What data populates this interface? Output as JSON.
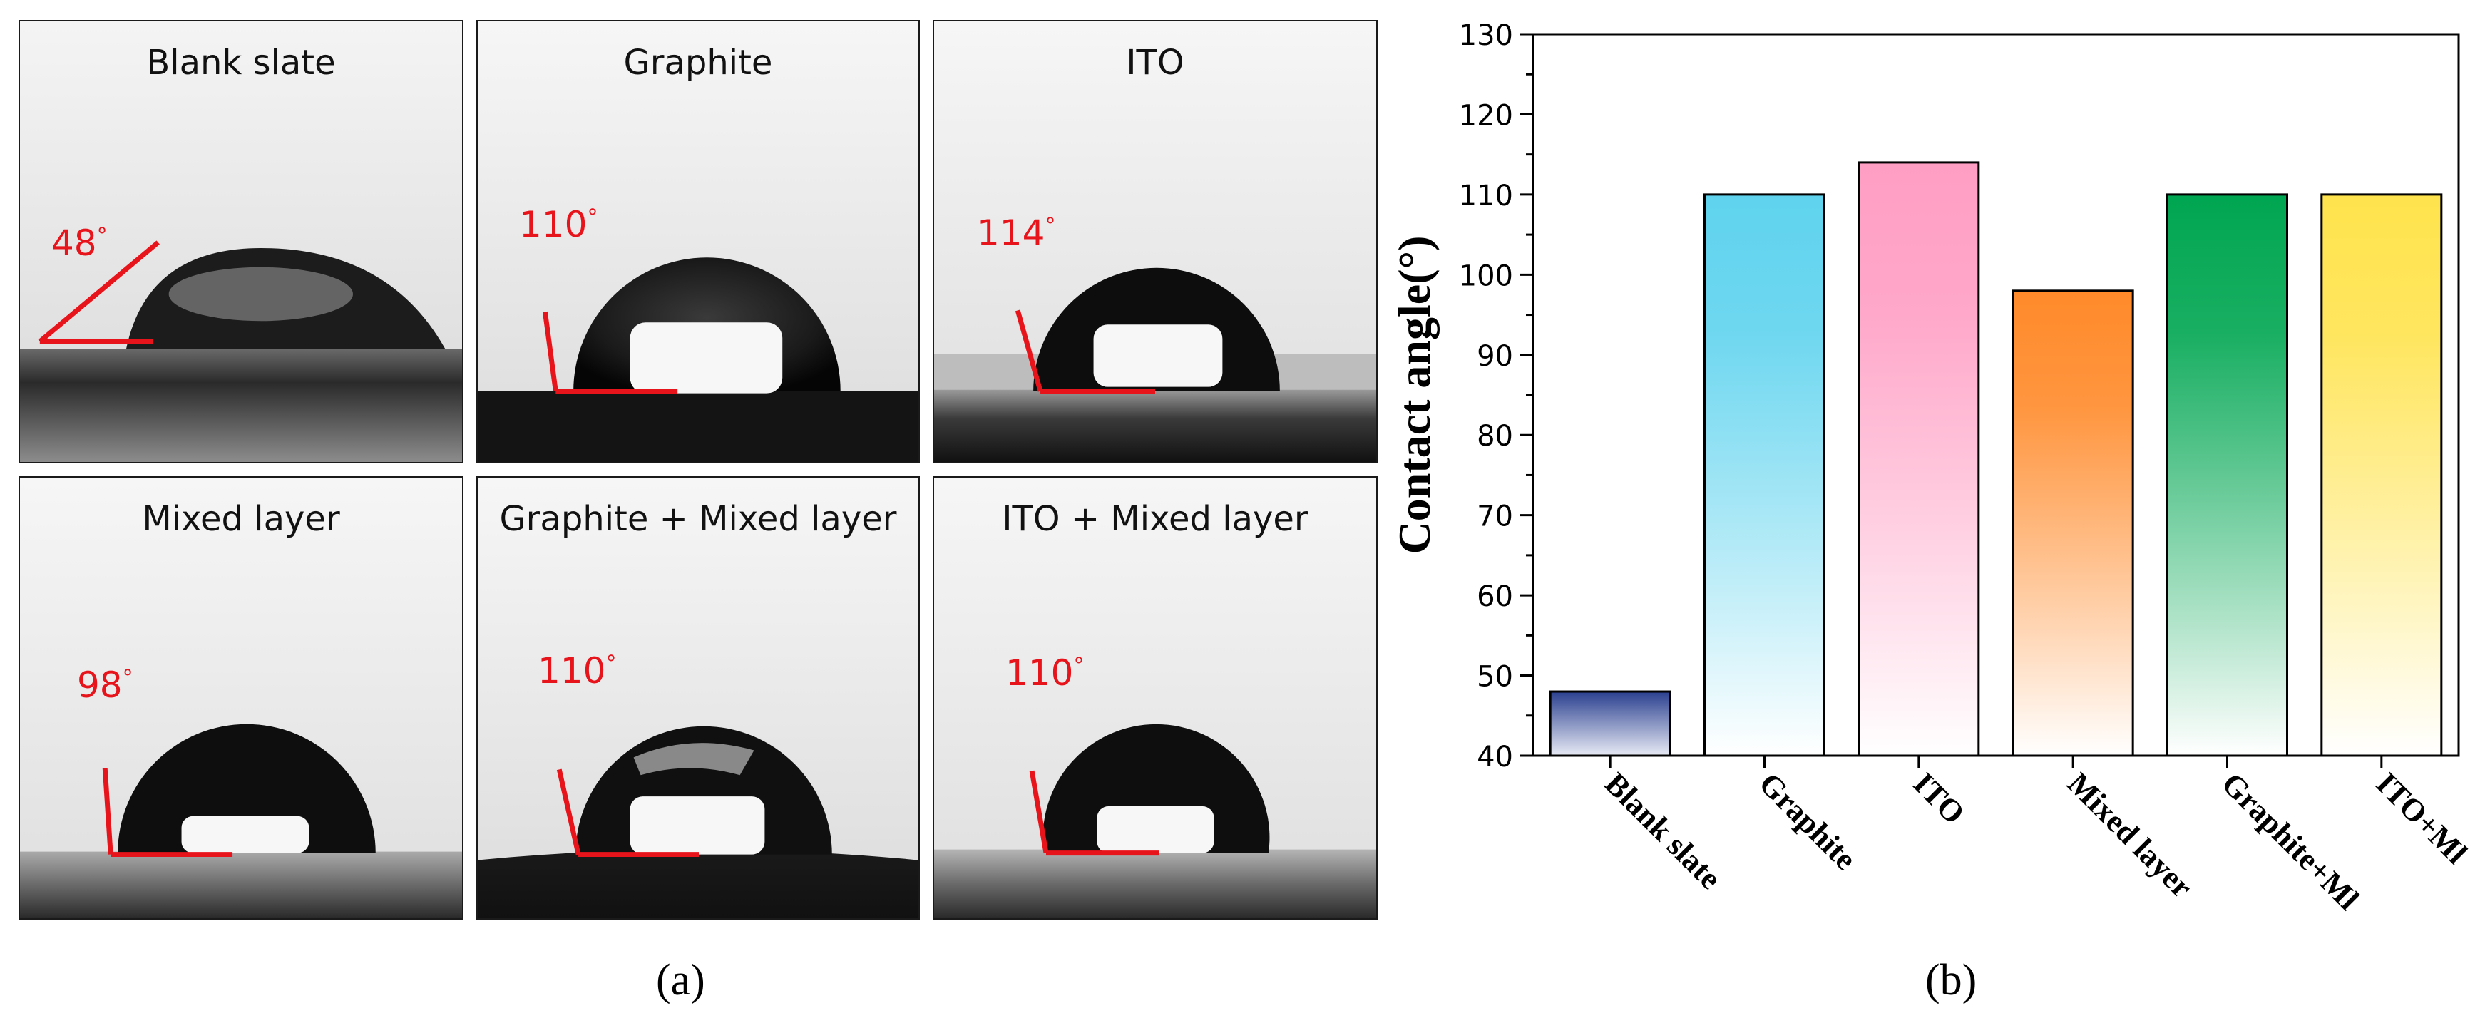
{
  "panel_a": {
    "caption": "(a)",
    "degree_symbol": "°",
    "panels": [
      {
        "title": "Blank slate",
        "angle_text": "48"
      },
      {
        "title": "Graphite",
        "angle_text": "110"
      },
      {
        "title": "ITO",
        "angle_text": "114"
      },
      {
        "title": "Mixed layer",
        "angle_text": "98"
      },
      {
        "title": "Graphite + Mixed layer",
        "angle_text": "110"
      },
      {
        "title": "ITO + Mixed layer",
        "angle_text": "110"
      }
    ]
  },
  "panel_b": {
    "caption": "(b)"
  },
  "colors": {
    "annotation_red": "#e8141c",
    "bar_blank": "#2a3f8f",
    "bar_graphite": "#5fd3ee",
    "bar_ito": "#ff9ec3",
    "bar_mixed": "#ff8a2a",
    "bar_graphite_ml": "#00a651",
    "bar_ito_ml": "#ffe34d"
  },
  "chart_data": {
    "type": "bar",
    "title": "",
    "xlabel": "",
    "ylabel": "Contact angle(°)",
    "categories": [
      "Blank slate",
      "Graphite",
      "ITO",
      "Mixed layer",
      "Graphite+Ml",
      "ITO+Ml"
    ],
    "values": [
      48,
      110,
      114,
      98,
      110,
      110
    ],
    "ylim": [
      40,
      130
    ],
    "yticks": [
      40,
      50,
      60,
      70,
      80,
      90,
      100,
      110,
      120,
      130
    ],
    "grid": false,
    "legend": "none"
  }
}
